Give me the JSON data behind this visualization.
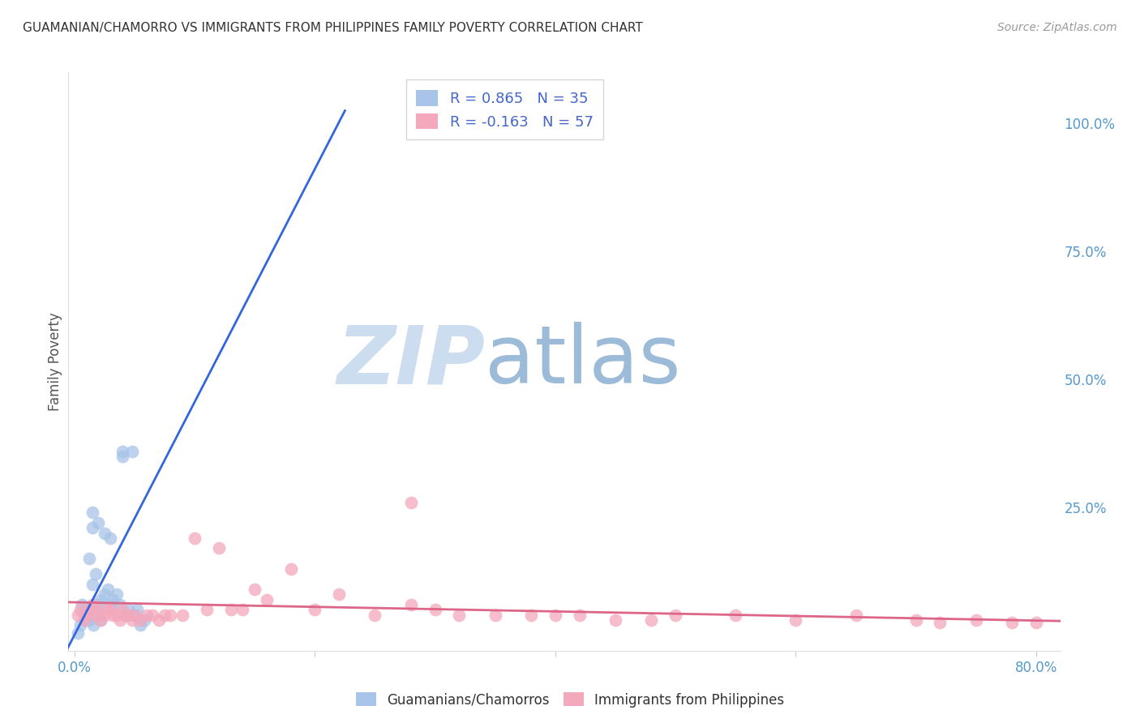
{
  "title": "GUAMANIAN/CHAMORRO VS IMMIGRANTS FROM PHILIPPINES FAMILY POVERTY CORRELATION CHART",
  "source": "Source: ZipAtlas.com",
  "ylabel": "Family Poverty",
  "ytick_labels": [
    "100.0%",
    "75.0%",
    "50.0%",
    "25.0%"
  ],
  "ytick_values": [
    1.0,
    0.75,
    0.5,
    0.25
  ],
  "xlim": [
    -0.005,
    0.82
  ],
  "ylim": [
    -0.03,
    1.1
  ],
  "legend_r1": "0.865",
  "legend_n1": "35",
  "legend_r2": "-0.163",
  "legend_n2": "57",
  "blue_color": "#a8c4e8",
  "pink_color": "#f4a8bc",
  "blue_line_color": "#3366dd",
  "pink_line_color": "#dd6688",
  "watermark_zip": "ZIP",
  "watermark_atlas": "atlas",
  "watermark_color_zip": "#ccddf0",
  "watermark_color_atlas": "#9bbbd8",
  "background_color": "#ffffff",
  "grid_color": "#cccccc",
  "blue_scatter_x": [
    0.005,
    0.008,
    0.01,
    0.012,
    0.015,
    0.015,
    0.015,
    0.018,
    0.02,
    0.02,
    0.022,
    0.025,
    0.025,
    0.028,
    0.03,
    0.03,
    0.032,
    0.035,
    0.038,
    0.04,
    0.04,
    0.042,
    0.045,
    0.048,
    0.05,
    0.052,
    0.055,
    0.058,
    0.003,
    0.006,
    0.009,
    0.012,
    0.016,
    0.019,
    0.022
  ],
  "blue_scatter_y": [
    0.02,
    0.04,
    0.05,
    0.03,
    0.24,
    0.21,
    0.1,
    0.12,
    0.22,
    0.06,
    0.07,
    0.2,
    0.08,
    0.09,
    0.19,
    0.06,
    0.07,
    0.08,
    0.06,
    0.35,
    0.36,
    0.04,
    0.05,
    0.36,
    0.04,
    0.05,
    0.02,
    0.03,
    0.005,
    0.06,
    0.03,
    0.15,
    0.02,
    0.04,
    0.03
  ],
  "pink_scatter_x": [
    0.003,
    0.005,
    0.008,
    0.01,
    0.012,
    0.015,
    0.018,
    0.02,
    0.022,
    0.025,
    0.028,
    0.03,
    0.032,
    0.035,
    0.038,
    0.04,
    0.042,
    0.045,
    0.048,
    0.05,
    0.055,
    0.06,
    0.065,
    0.07,
    0.075,
    0.08,
    0.09,
    0.1,
    0.11,
    0.12,
    0.13,
    0.14,
    0.15,
    0.16,
    0.18,
    0.2,
    0.22,
    0.25,
    0.28,
    0.3,
    0.32,
    0.35,
    0.38,
    0.4,
    0.42,
    0.45,
    0.48,
    0.5,
    0.55,
    0.6,
    0.65,
    0.7,
    0.72,
    0.75,
    0.78,
    0.8,
    0.28
  ],
  "pink_scatter_y": [
    0.04,
    0.05,
    0.03,
    0.04,
    0.05,
    0.06,
    0.04,
    0.05,
    0.03,
    0.04,
    0.05,
    0.05,
    0.04,
    0.04,
    0.03,
    0.05,
    0.04,
    0.04,
    0.03,
    0.04,
    0.03,
    0.04,
    0.04,
    0.03,
    0.04,
    0.04,
    0.04,
    0.19,
    0.05,
    0.17,
    0.05,
    0.05,
    0.09,
    0.07,
    0.13,
    0.05,
    0.08,
    0.04,
    0.06,
    0.05,
    0.04,
    0.04,
    0.04,
    0.04,
    0.04,
    0.03,
    0.03,
    0.04,
    0.04,
    0.03,
    0.04,
    0.03,
    0.025,
    0.03,
    0.025,
    0.025,
    0.26
  ],
  "blue_line_x": [
    -0.01,
    0.225
  ],
  "blue_line_y": [
    -0.045,
    1.025
  ],
  "pink_line_x": [
    -0.01,
    0.82
  ],
  "pink_line_y": [
    0.065,
    0.028
  ]
}
